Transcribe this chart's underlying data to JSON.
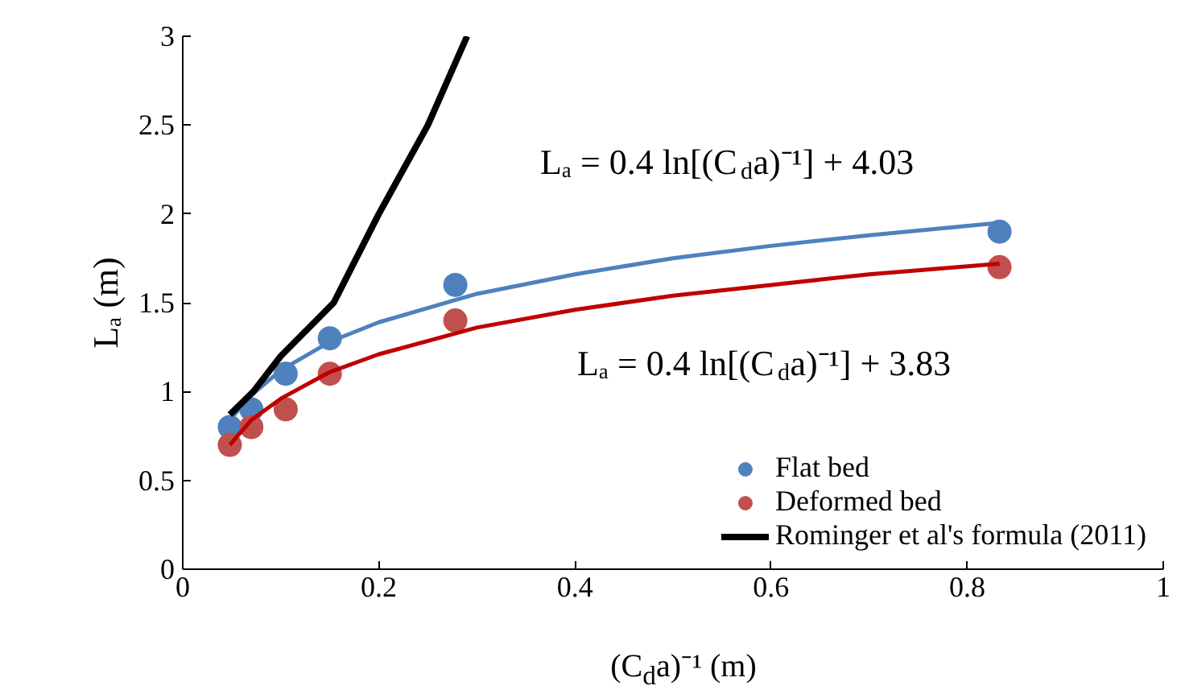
{
  "chart_data": {
    "type": "scatter",
    "xlabel": "(C$_{d}$a)⁻¹ (m)",
    "ylabel": "Lₐ (m)",
    "xlim": [
      0,
      1
    ],
    "ylim": [
      0,
      3
    ],
    "xticks": [
      0,
      0.2,
      0.4,
      0.6,
      0.8,
      1
    ],
    "yticks": [
      0,
      0.5,
      1,
      1.5,
      2,
      2.5,
      3
    ],
    "grid": false,
    "legend": "bottom right",
    "series": [
      {
        "name": "Flat bed",
        "marker": "circle",
        "color": "#4f81bd",
        "x": [
          0.048,
          0.07,
          0.105,
          0.15,
          0.278,
          0.833
        ],
        "values": [
          0.8,
          0.9,
          1.1,
          1.3,
          1.6,
          1.9
        ]
      },
      {
        "name": "Deformed bed",
        "marker": "circle",
        "color": "#c0504d",
        "x": [
          0.048,
          0.07,
          0.105,
          0.15,
          0.278,
          0.833
        ],
        "values": [
          0.7,
          0.8,
          0.9,
          1.1,
          1.4,
          1.7
        ]
      },
      {
        "type": "line",
        "color": "#4f81bd",
        "x": [
          0.048,
          0.07,
          0.1,
          0.15,
          0.2,
          0.3,
          0.4,
          0.5,
          0.6,
          0.7,
          0.833
        ],
        "values": [
          0.84,
          0.98,
          1.12,
          1.28,
          1.39,
          1.55,
          1.66,
          1.75,
          1.82,
          1.88,
          1.95
        ]
      },
      {
        "type": "line",
        "color": "#c00000",
        "x": [
          0.048,
          0.07,
          0.1,
          0.15,
          0.2,
          0.3,
          0.4,
          0.5,
          0.6,
          0.7,
          0.833
        ],
        "values": [
          0.7,
          0.84,
          0.96,
          1.11,
          1.21,
          1.36,
          1.46,
          1.54,
          1.6,
          1.66,
          1.72
        ]
      },
      {
        "name": "Rominger et al's formula (2011)",
        "type": "line",
        "color": "#000000",
        "x": [
          0.048,
          0.072,
          0.1,
          0.154,
          0.2,
          0.25,
          0.29
        ],
        "values": [
          0.87,
          1.0,
          1.2,
          1.5,
          2.0,
          2.5,
          3.0
        ]
      }
    ],
    "annotations": [
      "Lₐ = 0.4 ln[(C$_{d}$a)⁻¹] + 4.03",
      "Lₐ = 0.4 ln[(C$_{d}$a)⁻¹] + 3.83"
    ]
  }
}
